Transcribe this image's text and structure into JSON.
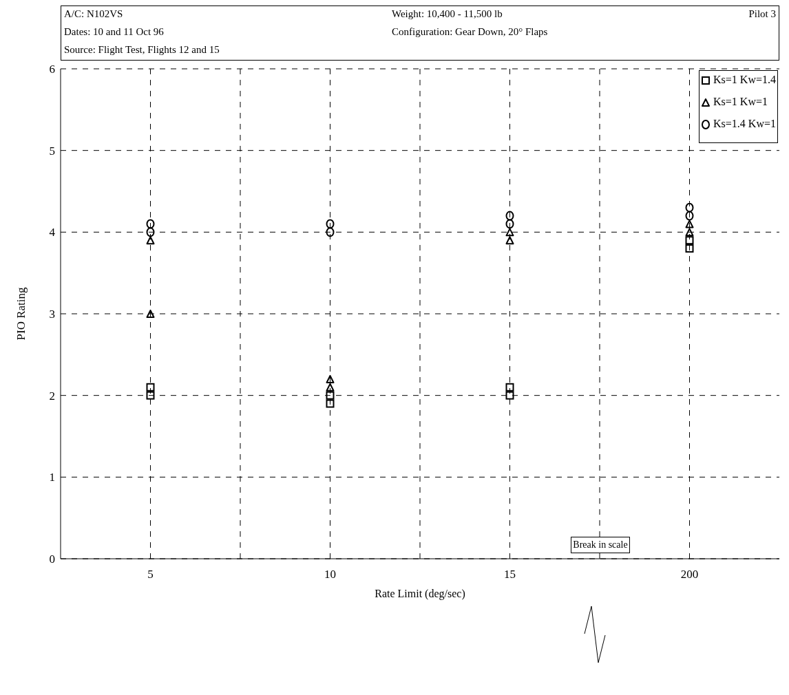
{
  "chart_data": {
    "type": "scatter",
    "subtitle": "Pilot 3",
    "annotations": [
      "A/C: N102VS",
      "Weight: 10,400 - 11,500 lb",
      "Dates: 10 and 11 Oct 96",
      "Configuration: Gear Down, 20° Flaps",
      "Source: Flight Test, Flights 12 and 15",
      "Break\nin scale"
    ],
    "xlabel": "Rate Limit (deg/sec)",
    "ylabel": "PIO Rating",
    "categories": [
      "5",
      "10",
      "15",
      "200"
    ],
    "series": [
      {
        "name": "Ks=1 Kw=1.4",
        "color": "#000000",
        "marker": "square",
        "x": [
          "5",
          "5",
          "10",
          "10",
          "15",
          "15",
          "200",
          "200"
        ],
        "values": [
          2.1,
          2.0,
          2.0,
          1.9,
          2.1,
          2.0,
          3.9,
          3.8
        ]
      },
      {
        "name": "Ks=1 Kw=1",
        "color": "#000000",
        "marker": "triangle",
        "x": [
          "5",
          "5",
          "10",
          "10",
          "15",
          "15",
          "200",
          "200"
        ],
        "values": [
          3.9,
          3.0,
          2.2,
          2.1,
          4.0,
          3.9,
          4.1,
          4.0
        ]
      },
      {
        "name": "Ks=1.4 Kw=1",
        "color": "#000000",
        "marker": "circle",
        "x": [
          "5",
          "5",
          "10",
          "10",
          "15",
          "15",
          "200",
          "200"
        ],
        "values": [
          4.1,
          4.0,
          4.1,
          4.0,
          4.2,
          4.1,
          4.3,
          4.2
        ]
      }
    ],
    "ylim": [
      0,
      6
    ],
    "yticks": [
      0,
      1,
      2,
      3,
      4,
      5,
      6
    ],
    "grid": true,
    "legend": "top right"
  }
}
